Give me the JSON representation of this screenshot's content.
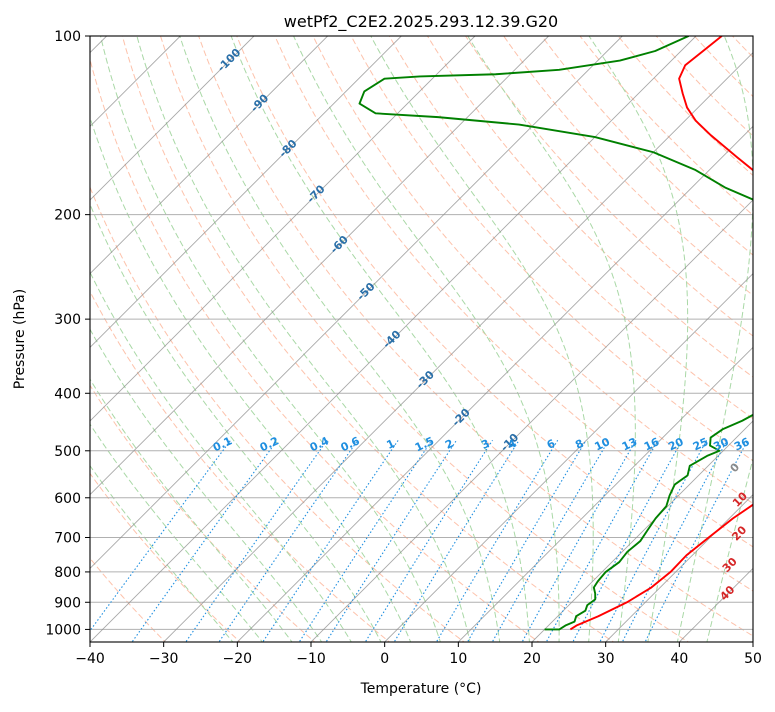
{
  "chart_data": {
    "type": "line",
    "title": "wetPf2_C2E2.2025.293.12.39.G20",
    "xlabel": "Temperature (°C)",
    "ylabel": "Pressure (hPa)",
    "xlim": [
      -40,
      50
    ],
    "ylim": [
      1050,
      100
    ],
    "y_scale": "log",
    "grid": true,
    "skew": "skew-T log-p diagram (isotherms skewed 45°)",
    "x_ticks": [
      -40,
      -30,
      -20,
      -10,
      0,
      10,
      20,
      30,
      40,
      50
    ],
    "y_ticks": [
      100,
      200,
      300,
      400,
      500,
      600,
      700,
      800,
      900,
      1000
    ],
    "colors": {
      "temperature": "#ff0000",
      "dewpoint": "#008000",
      "isotherm": "#8c8c8c",
      "isobar": "#b0b0b0",
      "dry_adiabat": "#fdbba2",
      "moist_adiabat": "#a9d8a6",
      "mixing_ratio": "#1f8fe0",
      "label_blue": "#2a6fa8",
      "label_red": "#d62728",
      "tan": "#d9c2a3"
    },
    "series": [
      {
        "role": "temperature",
        "points": [
          [
            23.5,
            1000
          ],
          [
            23.8,
            985
          ],
          [
            25.5,
            950
          ],
          [
            27.5,
            900
          ],
          [
            28.8,
            850
          ],
          [
            29.3,
            800
          ],
          [
            29.2,
            750
          ],
          [
            29.8,
            700
          ],
          [
            30.5,
            650
          ],
          [
            31.8,
            600
          ],
          [
            33.5,
            570
          ],
          [
            34.5,
            540
          ],
          [
            34.3,
            510
          ],
          [
            35.2,
            490
          ],
          [
            35.5,
            470
          ],
          [
            34.8,
            450
          ],
          [
            34.0,
            420
          ],
          [
            33.2,
            390
          ],
          [
            32.0,
            360
          ],
          [
            30.2,
            335
          ],
          [
            28.3,
            310
          ],
          [
            26.5,
            290
          ],
          [
            24.0,
            275
          ],
          [
            21.0,
            262
          ],
          [
            17.5,
            250
          ],
          [
            12.5,
            235
          ],
          [
            7.0,
            220
          ],
          [
            1.5,
            205
          ],
          [
            -5.0,
            190
          ],
          [
            -11.0,
            175
          ],
          [
            -18.0,
            160
          ],
          [
            -24.5,
            147
          ],
          [
            -28.5,
            139
          ],
          [
            -31.5,
            132
          ],
          [
            -34.0,
            125
          ],
          [
            -36.5,
            118
          ],
          [
            -37.5,
            112
          ],
          [
            -37.0,
            106
          ],
          [
            -36.5,
            100
          ]
        ]
      },
      {
        "role": "dewpoint",
        "points": [
          [
            20.0,
            1000
          ],
          [
            22.0,
            1000
          ],
          [
            22.3,
            985
          ],
          [
            23.0,
            970
          ],
          [
            22.5,
            950
          ],
          [
            23.0,
            930
          ],
          [
            22.5,
            910
          ],
          [
            22.8,
            890
          ],
          [
            22.0,
            870
          ],
          [
            21.0,
            850
          ],
          [
            20.7,
            830
          ],
          [
            20.5,
            800
          ],
          [
            21.0,
            770
          ],
          [
            20.7,
            740
          ],
          [
            21.0,
            710
          ],
          [
            20.5,
            680
          ],
          [
            20.0,
            650
          ],
          [
            19.8,
            620
          ],
          [
            18.8,
            595
          ],
          [
            18.0,
            570
          ],
          [
            18.5,
            550
          ],
          [
            17.5,
            530
          ],
          [
            18.5,
            510
          ],
          [
            19.5,
            500
          ],
          [
            17.5,
            490
          ],
          [
            16.5,
            475
          ],
          [
            17.0,
            460
          ],
          [
            18.5,
            445
          ],
          [
            19.5,
            430
          ],
          [
            20.5,
            415
          ],
          [
            21.5,
            400
          ],
          [
            21.8,
            385
          ],
          [
            21.0,
            370
          ],
          [
            20.5,
            355
          ],
          [
            21.0,
            340
          ],
          [
            21.0,
            320
          ],
          [
            20.5,
            300
          ],
          [
            19.5,
            282
          ],
          [
            18.5,
            268
          ],
          [
            16.0,
            255
          ],
          [
            12.0,
            242
          ],
          [
            7.0,
            230
          ],
          [
            3.0,
            218
          ],
          [
            -1.5,
            205
          ],
          [
            -8.0,
            192
          ],
          [
            -15.5,
            180
          ],
          [
            -22.0,
            168
          ],
          [
            -30.0,
            157
          ],
          [
            -40.0,
            148
          ],
          [
            -52.0,
            141
          ],
          [
            -64.0,
            137
          ],
          [
            -73.0,
            135
          ],
          [
            -76.5,
            130
          ],
          [
            -77.5,
            124
          ],
          [
            -76.5,
            118
          ],
          [
            -72.0,
            117
          ],
          [
            -62.0,
            116
          ],
          [
            -54.0,
            114
          ],
          [
            -47.0,
            110
          ],
          [
            -43.5,
            106
          ],
          [
            -41.0,
            100
          ]
        ]
      }
    ],
    "isotherm_labels": [
      -100,
      -90,
      -80,
      -70,
      -60,
      -50,
      -40,
      -30,
      -20,
      -10
    ],
    "isotherm_label_pressures": [
      110,
      130,
      155,
      185,
      225,
      270,
      325,
      380,
      440,
      485
    ],
    "red_labels": [
      {
        "text": "0",
        "t": 24,
        "p": 535
      },
      {
        "text": "10",
        "t": 29,
        "p": 605
      },
      {
        "text": "20",
        "t": 33.5,
        "p": 690
      },
      {
        "text": "30",
        "t": 36.5,
        "p": 780
      },
      {
        "text": "40",
        "t": 40,
        "p": 870
      }
    ],
    "mixing_ratio_values": [
      0.1,
      0.2,
      0.4,
      0.6,
      1,
      1.5,
      2,
      3,
      4,
      6,
      8,
      10,
      13,
      16,
      20,
      25,
      30,
      36
    ],
    "mixing_ratio_labels": [
      "0.1",
      "0.2",
      "0.4",
      "0.6",
      "1",
      "1.5",
      "2",
      "3",
      "4",
      "6",
      "8",
      "10",
      "13",
      "16",
      "20",
      "25",
      "30",
      "36"
    ],
    "mixing_ratio_label_pressure": 500
  }
}
